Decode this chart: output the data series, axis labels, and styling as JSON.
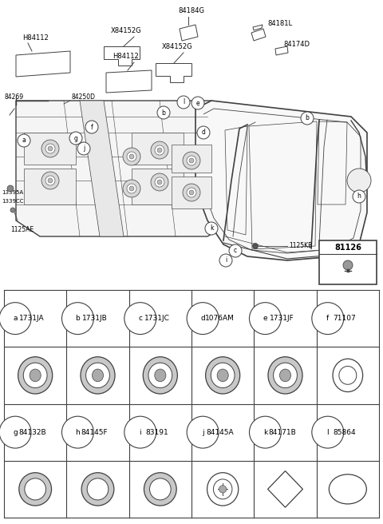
{
  "bg_color": "#ffffff",
  "ec": "#404040",
  "table_row1": [
    {
      "letter": "a",
      "code": "1731JA"
    },
    {
      "letter": "b",
      "code": "1731JB"
    },
    {
      "letter": "c",
      "code": "1731JC"
    },
    {
      "letter": "d",
      "code": "1076AM"
    },
    {
      "letter": "e",
      "code": "1731JF"
    },
    {
      "letter": "f",
      "code": "71107"
    }
  ],
  "table_row2": [
    {
      "letter": "g",
      "code": "84132B"
    },
    {
      "letter": "h",
      "code": "84145F"
    },
    {
      "letter": "i",
      "code": "83191"
    },
    {
      "letter": "j",
      "code": "84145A"
    },
    {
      "letter": "k",
      "code": "84171B"
    },
    {
      "letter": "l",
      "code": "85864"
    }
  ]
}
